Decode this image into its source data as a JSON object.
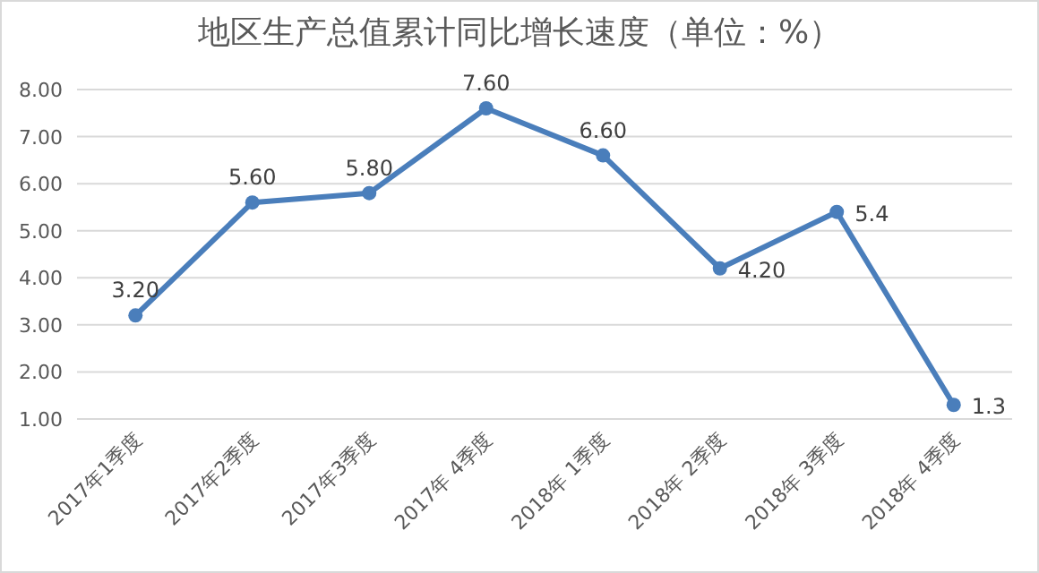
{
  "chart_data": {
    "type": "line",
    "title": "地区生产总值累计同比增长速度（单位：%）",
    "categories": [
      "2017年1季度",
      "2017年2季度",
      "2017年3季度",
      "2017年 4季度",
      "2018年 1季度",
      "2018年 2季度",
      "2018年 3季度",
      "2018年 4季度"
    ],
    "series": [
      {
        "color": "#4a7ebb",
        "values": [
          3.2,
          5.6,
          5.8,
          7.6,
          6.6,
          4.2,
          5.4,
          1.3
        ],
        "value_labels": [
          "3.20",
          "5.60",
          "5.80",
          "7.60",
          "6.60",
          "4.20",
          "5.4",
          "1.3"
        ]
      }
    ],
    "ylim": [
      1,
      8
    ],
    "yticks": [
      {
        "value": 1,
        "label": "1.00"
      },
      {
        "value": 2,
        "label": "2.00"
      },
      {
        "value": 3,
        "label": "3.00"
      },
      {
        "value": 4,
        "label": "4.00"
      },
      {
        "value": 5,
        "label": "5.00"
      },
      {
        "value": 6,
        "label": "6.00"
      },
      {
        "value": 7,
        "label": "7.00"
      },
      {
        "value": 8,
        "label": "8.00"
      }
    ],
    "grid": "y",
    "marker": "circle",
    "line_style": "solid"
  }
}
